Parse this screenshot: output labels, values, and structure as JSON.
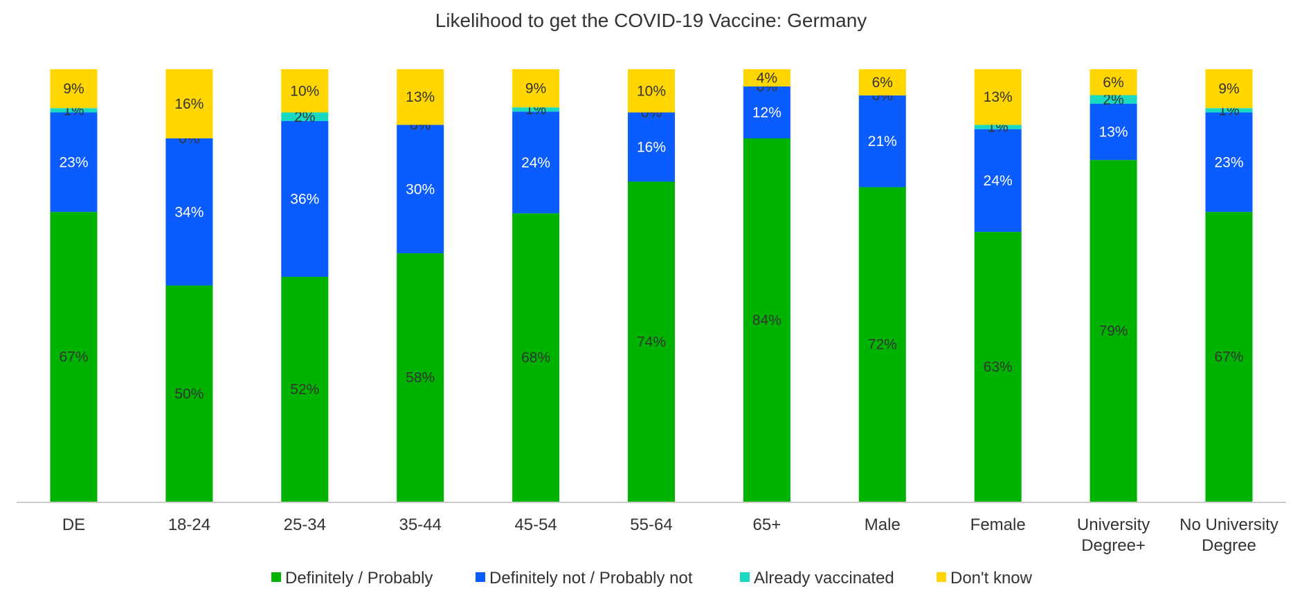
{
  "chart_data": {
    "type": "bar",
    "stacked": true,
    "title": "Likelihood to get the COVID-19 Vaccine: Germany",
    "xlabel": "",
    "ylabel": "",
    "ylim": [
      0,
      100
    ],
    "grid": false,
    "legend_position": "bottom",
    "categories": [
      [
        "DE"
      ],
      [
        "18-24"
      ],
      [
        "25-34"
      ],
      [
        "35-44"
      ],
      [
        "45-54"
      ],
      [
        "55-64"
      ],
      [
        "65+"
      ],
      [
        "Male"
      ],
      [
        "Female"
      ],
      [
        "University",
        "Degree+"
      ],
      [
        "No University",
        "Degree"
      ]
    ],
    "series": [
      {
        "name": "Definitely / Probably",
        "color": "#00b300",
        "label_color": "#333333",
        "values": [
          67,
          50,
          52,
          58,
          68,
          74,
          84,
          72,
          63,
          79,
          67
        ]
      },
      {
        "name": "Definitely not / Probably not",
        "color": "#0a5cff",
        "label_color": "#ffffff",
        "values": [
          23,
          34,
          36,
          30,
          24,
          16,
          12,
          21,
          24,
          13,
          23
        ]
      },
      {
        "name": "Already vaccinated",
        "color": "#19d9c0",
        "label_color": "#333333",
        "values": [
          1,
          0,
          2,
          0,
          1,
          0,
          0,
          0,
          1,
          2,
          1
        ]
      },
      {
        "name": "Don't know",
        "color": "#ffd600",
        "label_color": "#333333",
        "values": [
          9,
          16,
          10,
          13,
          9,
          10,
          4,
          6,
          13,
          6,
          9
        ]
      }
    ]
  }
}
